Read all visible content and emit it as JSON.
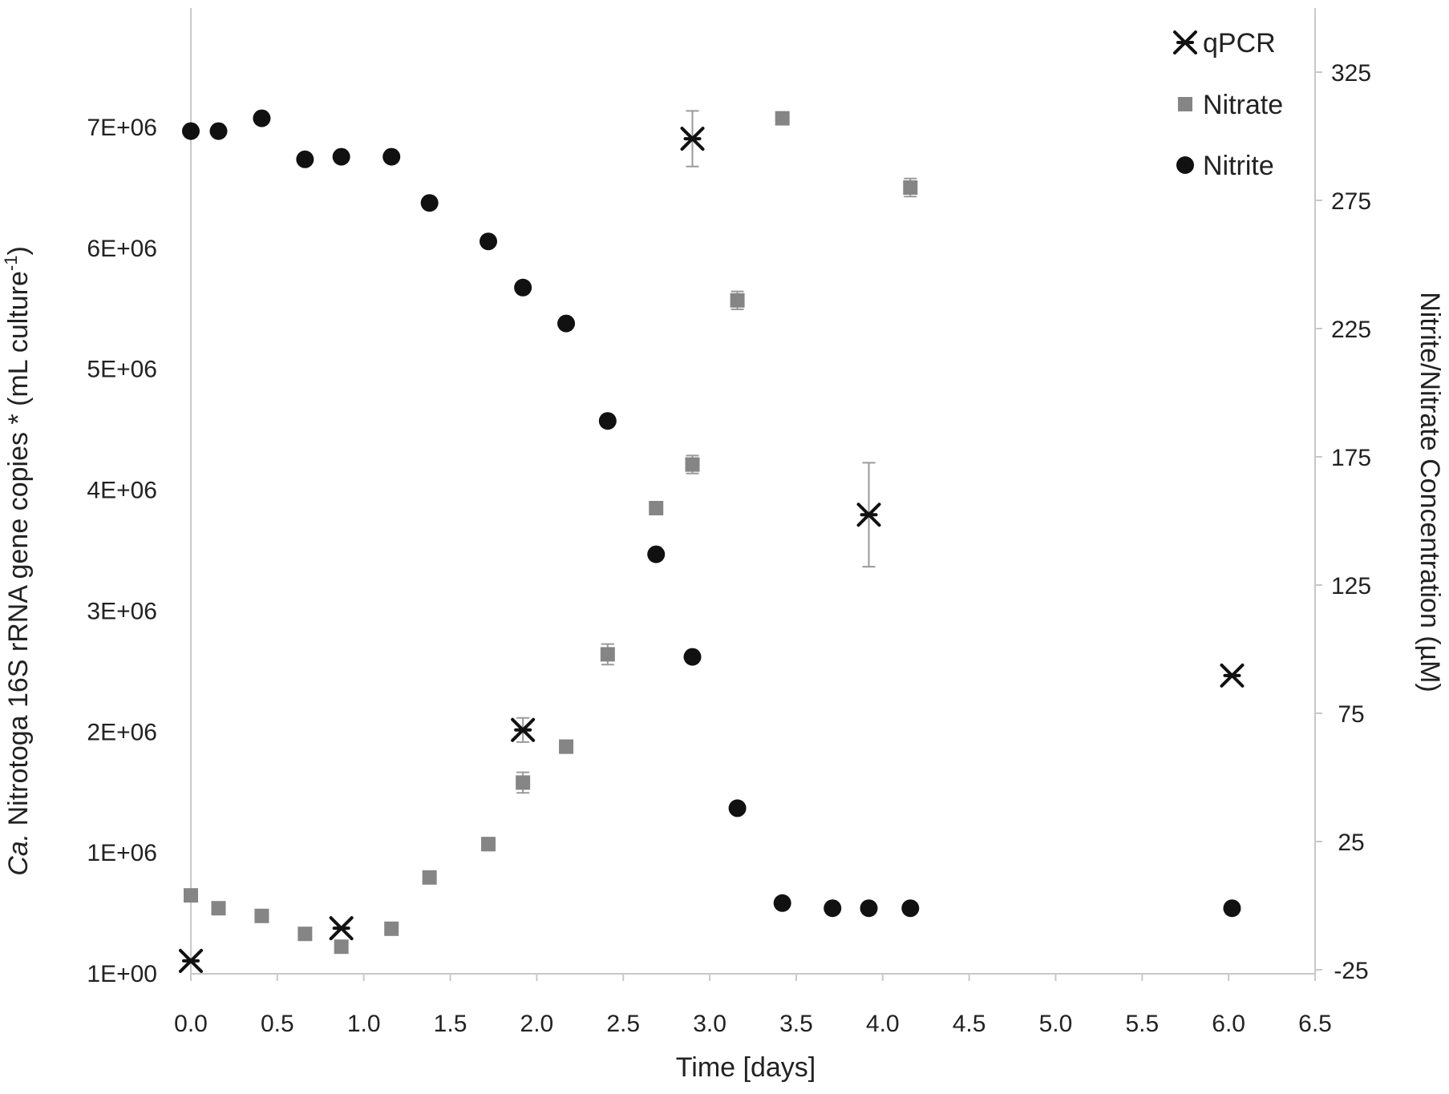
{
  "chart_data": {
    "type": "scatter",
    "title": "",
    "xlabel": "Time [days]",
    "ylabel_left": "Ca. Nitrotoga 16S rRNA gene copies * (mL culture-1)",
    "ylabel_left_italic_prefix": "Ca.",
    "ylabel_left_main": " Nitrotoga 16S rRNA gene copies * (mL culture",
    "ylabel_left_sup": "-1",
    "ylabel_left_end": ")",
    "ylabel_right": "Nitrite/Nitrate Concentration (µM)",
    "xlim": [
      0,
      6.5
    ],
    "ylim_left": [
      0,
      7000000
    ],
    "ylim_right": [
      -25,
      325
    ],
    "x_ticks": [
      "0.0",
      "0.5",
      "1.0",
      "1.5",
      "2.0",
      "2.5",
      "3.0",
      "3.5",
      "4.0",
      "4.5",
      "5.0",
      "5.5",
      "6.0",
      "6.5"
    ],
    "y_left_ticks": [
      "1E+00",
      "1E+06",
      "2E+06",
      "3E+06",
      "4E+06",
      "5E+06",
      "6E+06",
      "7E+06"
    ],
    "y_right_ticks": [
      "-25",
      "25",
      "75",
      "125",
      "175",
      "225",
      "275",
      "325"
    ],
    "grid": false,
    "legend_position": "top-right",
    "series": [
      {
        "name": "qPCR",
        "axis": "left",
        "marker": "asterisk",
        "color": "#111111",
        "points": [
          {
            "x": 0.0,
            "y": 100000,
            "err": 0
          },
          {
            "x": 0.87,
            "y": 370000,
            "err": 0
          },
          {
            "x": 1.92,
            "y": 2010000,
            "err": 100000
          },
          {
            "x": 2.9,
            "y": 6900000,
            "err": 230000
          },
          {
            "x": 3.92,
            "y": 3790000,
            "err": 430000
          },
          {
            "x": 6.02,
            "y": 2460000,
            "err": 0
          }
        ]
      },
      {
        "name": "Nitrate",
        "axis": "right",
        "marker": "square",
        "color": "#858585",
        "points": [
          {
            "x": 0.0,
            "y": 4,
            "err": 0
          },
          {
            "x": 0.16,
            "y": -1,
            "err": 0
          },
          {
            "x": 0.41,
            "y": -4,
            "err": 0
          },
          {
            "x": 0.66,
            "y": -11,
            "err": 0
          },
          {
            "x": 0.87,
            "y": -16,
            "err": 0
          },
          {
            "x": 1.16,
            "y": -9,
            "err": 0
          },
          {
            "x": 1.38,
            "y": 11,
            "err": 1.5
          },
          {
            "x": 1.72,
            "y": 24,
            "err": 2.5
          },
          {
            "x": 1.92,
            "y": 48,
            "err": 4
          },
          {
            "x": 2.17,
            "y": 62,
            "err": 2.5
          },
          {
            "x": 2.41,
            "y": 98,
            "err": 4
          },
          {
            "x": 2.69,
            "y": 155,
            "err": 2
          },
          {
            "x": 2.9,
            "y": 172,
            "err": 3.5
          },
          {
            "x": 3.16,
            "y": 236,
            "err": 3.5
          },
          {
            "x": 3.42,
            "y": 307,
            "err": 1
          },
          {
            "x": 4.16,
            "y": 280,
            "err": 3.5
          }
        ]
      },
      {
        "name": "Nitrite",
        "axis": "right",
        "marker": "circle",
        "color": "#111111",
        "points": [
          {
            "x": 0.0,
            "y": 302,
            "err": 0
          },
          {
            "x": 0.16,
            "y": 302,
            "err": 0
          },
          {
            "x": 0.41,
            "y": 307,
            "err": 0
          },
          {
            "x": 0.66,
            "y": 291,
            "err": 0
          },
          {
            "x": 0.87,
            "y": 292,
            "err": 0
          },
          {
            "x": 1.16,
            "y": 292,
            "err": 0
          },
          {
            "x": 1.38,
            "y": 274,
            "err": 1.5
          },
          {
            "x": 1.72,
            "y": 259,
            "err": 1.5
          },
          {
            "x": 1.92,
            "y": 241,
            "err": 1.5
          },
          {
            "x": 2.17,
            "y": 227,
            "err": 0
          },
          {
            "x": 2.41,
            "y": 189,
            "err": 2
          },
          {
            "x": 2.69,
            "y": 137,
            "err": 0
          },
          {
            "x": 2.9,
            "y": 97,
            "err": 0
          },
          {
            "x": 3.16,
            "y": 38,
            "err": 0
          },
          {
            "x": 3.42,
            "y": 1,
            "err": 0
          },
          {
            "x": 3.71,
            "y": -1,
            "err": 0
          },
          {
            "x": 3.92,
            "y": -1,
            "err": 0
          },
          {
            "x": 4.16,
            "y": -1,
            "err": 0
          },
          {
            "x": 6.02,
            "y": -1,
            "err": 0
          }
        ]
      }
    ]
  }
}
